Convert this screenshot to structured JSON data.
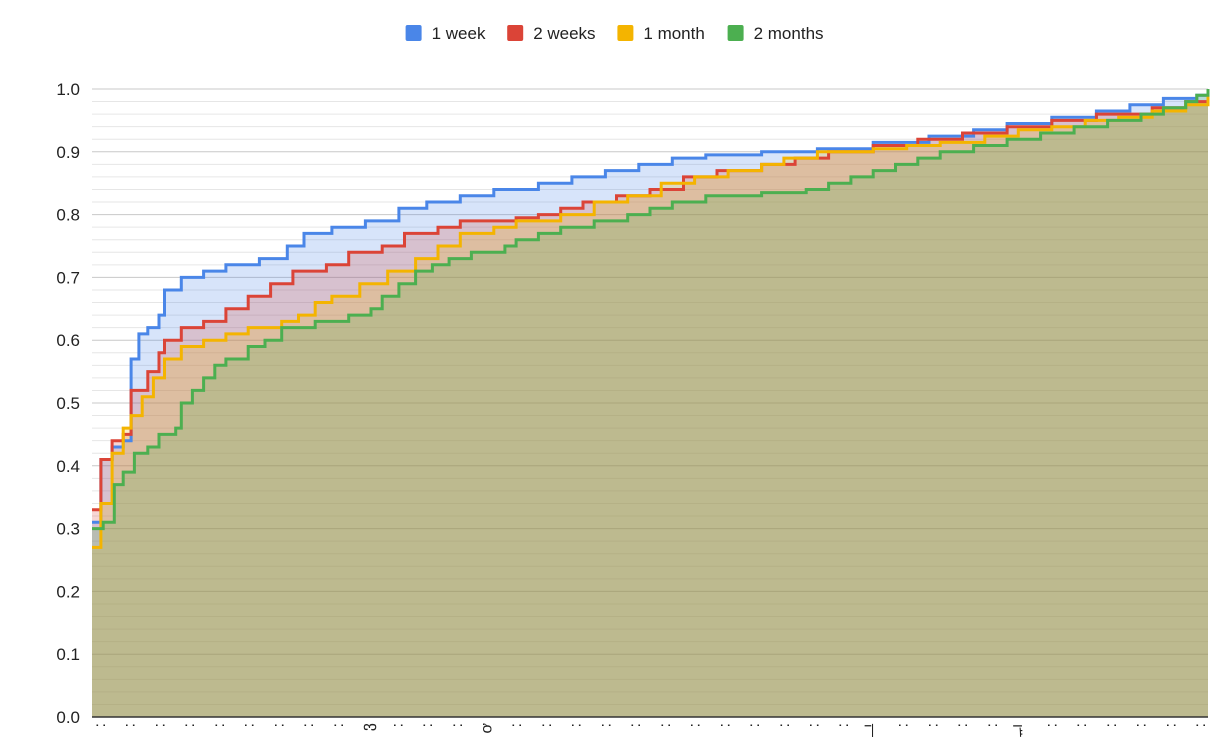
{
  "chart_data": {
    "type": "area",
    "title": "",
    "xlabel": "",
    "ylabel": "",
    "ylim": [
      0,
      1
    ],
    "yticks": [
      "0.0",
      "0.1",
      "0.2",
      "0.3",
      "0.4",
      "0.5",
      "0.6",
      "0.7",
      "0.8",
      "0.9",
      "1.0"
    ],
    "legend_position": "top-center",
    "grid": true,
    "x_category_labels": [
      ":",
      ":",
      ":",
      ":",
      ":",
      ":",
      ":",
      ":",
      ":",
      "ვ",
      ":",
      ":",
      ":",
      "ơ",
      ":",
      ":",
      ":",
      ":",
      ":",
      ":",
      ":",
      ":",
      ":",
      ":",
      ":",
      ":",
      "ᆜ",
      ":",
      ":",
      ":",
      ":",
      "ᆔ",
      ":",
      ":",
      ":",
      ":",
      ":",
      ":"
    ],
    "series": [
      {
        "name": "1 week",
        "color": "#4a86e8",
        "points": [
          [
            0,
            0.31
          ],
          [
            0.008,
            0.41
          ],
          [
            0.018,
            0.43
          ],
          [
            0.028,
            0.44
          ],
          [
            0.035,
            0.57
          ],
          [
            0.042,
            0.61
          ],
          [
            0.05,
            0.62
          ],
          [
            0.06,
            0.64
          ],
          [
            0.065,
            0.68
          ],
          [
            0.08,
            0.7
          ],
          [
            0.1,
            0.71
          ],
          [
            0.12,
            0.72
          ],
          [
            0.15,
            0.73
          ],
          [
            0.175,
            0.75
          ],
          [
            0.19,
            0.77
          ],
          [
            0.215,
            0.78
          ],
          [
            0.245,
            0.79
          ],
          [
            0.275,
            0.81
          ],
          [
            0.3,
            0.82
          ],
          [
            0.33,
            0.83
          ],
          [
            0.36,
            0.84
          ],
          [
            0.4,
            0.85
          ],
          [
            0.43,
            0.86
          ],
          [
            0.46,
            0.87
          ],
          [
            0.49,
            0.88
          ],
          [
            0.52,
            0.89
          ],
          [
            0.55,
            0.895
          ],
          [
            0.6,
            0.9
          ],
          [
            0.65,
            0.905
          ],
          [
            0.7,
            0.915
          ],
          [
            0.75,
            0.925
          ],
          [
            0.79,
            0.935
          ],
          [
            0.82,
            0.945
          ],
          [
            0.86,
            0.955
          ],
          [
            0.9,
            0.965
          ],
          [
            0.93,
            0.975
          ],
          [
            0.96,
            0.985
          ],
          [
            0.99,
            0.99
          ],
          [
            1.0,
            1.0
          ]
        ]
      },
      {
        "name": "2 weeks",
        "color": "#db4437",
        "points": [
          [
            0,
            0.33
          ],
          [
            0.008,
            0.41
          ],
          [
            0.018,
            0.44
          ],
          [
            0.028,
            0.45
          ],
          [
            0.035,
            0.52
          ],
          [
            0.05,
            0.55
          ],
          [
            0.06,
            0.58
          ],
          [
            0.065,
            0.6
          ],
          [
            0.08,
            0.62
          ],
          [
            0.1,
            0.63
          ],
          [
            0.12,
            0.65
          ],
          [
            0.14,
            0.67
          ],
          [
            0.16,
            0.69
          ],
          [
            0.18,
            0.71
          ],
          [
            0.21,
            0.72
          ],
          [
            0.23,
            0.74
          ],
          [
            0.26,
            0.75
          ],
          [
            0.28,
            0.77
          ],
          [
            0.31,
            0.78
          ],
          [
            0.33,
            0.79
          ],
          [
            0.38,
            0.795
          ],
          [
            0.4,
            0.8
          ],
          [
            0.42,
            0.81
          ],
          [
            0.44,
            0.82
          ],
          [
            0.47,
            0.83
          ],
          [
            0.5,
            0.84
          ],
          [
            0.53,
            0.86
          ],
          [
            0.56,
            0.87
          ],
          [
            0.6,
            0.88
          ],
          [
            0.63,
            0.89
          ],
          [
            0.66,
            0.9
          ],
          [
            0.7,
            0.91
          ],
          [
            0.74,
            0.92
          ],
          [
            0.78,
            0.93
          ],
          [
            0.82,
            0.94
          ],
          [
            0.86,
            0.95
          ],
          [
            0.9,
            0.96
          ],
          [
            0.95,
            0.97
          ],
          [
            0.98,
            0.98
          ],
          [
            1.0,
            1.0
          ]
        ]
      },
      {
        "name": "1 month",
        "color": "#f4b400",
        "points": [
          [
            0,
            0.27
          ],
          [
            0.008,
            0.34
          ],
          [
            0.018,
            0.42
          ],
          [
            0.028,
            0.46
          ],
          [
            0.035,
            0.48
          ],
          [
            0.045,
            0.51
          ],
          [
            0.055,
            0.54
          ],
          [
            0.065,
            0.57
          ],
          [
            0.08,
            0.59
          ],
          [
            0.1,
            0.6
          ],
          [
            0.12,
            0.61
          ],
          [
            0.14,
            0.62
          ],
          [
            0.17,
            0.63
          ],
          [
            0.185,
            0.64
          ],
          [
            0.2,
            0.66
          ],
          [
            0.215,
            0.67
          ],
          [
            0.24,
            0.69
          ],
          [
            0.265,
            0.71
          ],
          [
            0.29,
            0.73
          ],
          [
            0.31,
            0.75
          ],
          [
            0.33,
            0.77
          ],
          [
            0.36,
            0.78
          ],
          [
            0.38,
            0.79
          ],
          [
            0.42,
            0.8
          ],
          [
            0.45,
            0.82
          ],
          [
            0.48,
            0.83
          ],
          [
            0.51,
            0.85
          ],
          [
            0.54,
            0.86
          ],
          [
            0.57,
            0.87
          ],
          [
            0.6,
            0.88
          ],
          [
            0.62,
            0.89
          ],
          [
            0.65,
            0.9
          ],
          [
            0.7,
            0.905
          ],
          [
            0.73,
            0.91
          ],
          [
            0.76,
            0.915
          ],
          [
            0.8,
            0.925
          ],
          [
            0.83,
            0.935
          ],
          [
            0.86,
            0.94
          ],
          [
            0.89,
            0.95
          ],
          [
            0.92,
            0.955
          ],
          [
            0.95,
            0.965
          ],
          [
            0.98,
            0.975
          ],
          [
            1.0,
            1.0
          ]
        ]
      },
      {
        "name": "2 months",
        "color": "#4caf50",
        "points": [
          [
            0,
            0.3
          ],
          [
            0.01,
            0.31
          ],
          [
            0.02,
            0.37
          ],
          [
            0.028,
            0.39
          ],
          [
            0.038,
            0.42
          ],
          [
            0.05,
            0.43
          ],
          [
            0.06,
            0.45
          ],
          [
            0.075,
            0.46
          ],
          [
            0.08,
            0.5
          ],
          [
            0.09,
            0.52
          ],
          [
            0.1,
            0.54
          ],
          [
            0.11,
            0.56
          ],
          [
            0.12,
            0.57
          ],
          [
            0.14,
            0.59
          ],
          [
            0.155,
            0.6
          ],
          [
            0.17,
            0.62
          ],
          [
            0.2,
            0.63
          ],
          [
            0.23,
            0.64
          ],
          [
            0.25,
            0.65
          ],
          [
            0.26,
            0.67
          ],
          [
            0.275,
            0.69
          ],
          [
            0.29,
            0.71
          ],
          [
            0.305,
            0.72
          ],
          [
            0.32,
            0.73
          ],
          [
            0.34,
            0.74
          ],
          [
            0.37,
            0.75
          ],
          [
            0.38,
            0.76
          ],
          [
            0.4,
            0.77
          ],
          [
            0.42,
            0.78
          ],
          [
            0.45,
            0.79
          ],
          [
            0.48,
            0.8
          ],
          [
            0.5,
            0.81
          ],
          [
            0.52,
            0.82
          ],
          [
            0.55,
            0.83
          ],
          [
            0.6,
            0.835
          ],
          [
            0.64,
            0.84
          ],
          [
            0.66,
            0.85
          ],
          [
            0.68,
            0.86
          ],
          [
            0.7,
            0.87
          ],
          [
            0.72,
            0.88
          ],
          [
            0.74,
            0.89
          ],
          [
            0.76,
            0.9
          ],
          [
            0.79,
            0.91
          ],
          [
            0.82,
            0.92
          ],
          [
            0.85,
            0.93
          ],
          [
            0.88,
            0.94
          ],
          [
            0.91,
            0.95
          ],
          [
            0.94,
            0.96
          ],
          [
            0.96,
            0.97
          ],
          [
            0.98,
            0.98
          ],
          [
            0.99,
            0.99
          ],
          [
            1.0,
            1.0
          ]
        ]
      }
    ]
  }
}
